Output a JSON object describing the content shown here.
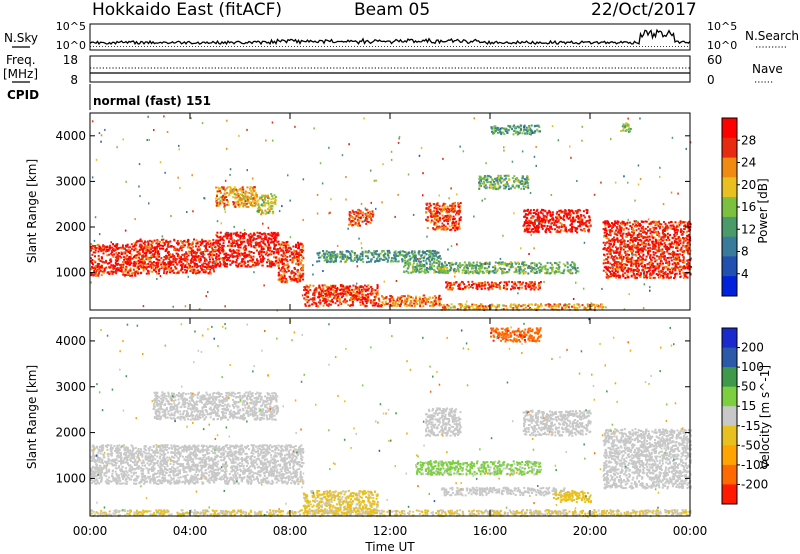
{
  "header": {
    "station": "Hokkaido East (fitACF)",
    "beam": "Beam 05",
    "date": "22/Oct/2017"
  },
  "status_panels": {
    "nsky_label": "N.Sky",
    "nsky_ticks": [
      "10^5",
      "10^0"
    ],
    "nsearch_label": "N.Search",
    "nsearch_ticks": [
      "10^5",
      "10^0"
    ],
    "freq_label": "Freq.",
    "freq_unit": "[MHz]",
    "freq_ticks": [
      "18",
      "8"
    ],
    "nave_label": "Nave",
    "nave_ticks": [
      "60",
      "0"
    ],
    "cpid_label": "CPID",
    "cpid_value": "normal (fast) 151"
  },
  "chart_data": [
    {
      "type": "heatmap",
      "panel": "power",
      "ylabel": "Slant Range [km]",
      "xlabel": "Time UT",
      "x_ticks": [
        "00:00",
        "04:00",
        "08:00",
        "12:00",
        "16:00",
        "20:00",
        "00:00"
      ],
      "x_range_hours": [
        0,
        24
      ],
      "y_ticks": [
        1000,
        2000,
        3000,
        4000
      ],
      "y_range_km": [
        180,
        4500
      ],
      "colorbar": {
        "label": "Power [dB]",
        "ticks": [
          4,
          8,
          12,
          16,
          20,
          24,
          28
        ],
        "range": [
          0,
          32
        ],
        "colors": [
          "#0022dd",
          "#2050b0",
          "#3a7a9a",
          "#4a9a6a",
          "#7cc040",
          "#e8c020",
          "#f08a10",
          "#e82a10",
          "#ff0000"
        ]
      },
      "regions": [
        {
          "t0": 0.0,
          "t1": 1.8,
          "r0": 950,
          "r1": 1650,
          "value": 28
        },
        {
          "t0": 1.8,
          "t1": 5.0,
          "r0": 1000,
          "r1": 1750,
          "value": 28
        },
        {
          "t0": 5.0,
          "t1": 7.5,
          "r0": 1150,
          "r1": 1900,
          "value": 29
        },
        {
          "t0": 7.5,
          "t1": 8.5,
          "r0": 800,
          "r1": 1700,
          "value": 27
        },
        {
          "t0": 8.5,
          "t1": 11.5,
          "r0": 280,
          "r1": 750,
          "value": 27
        },
        {
          "t0": 11.5,
          "t1": 14.0,
          "r0": 280,
          "r1": 520,
          "value": 24
        },
        {
          "t0": 14.0,
          "t1": 20.5,
          "r0": 200,
          "r1": 330,
          "value": 22
        },
        {
          "t0": 5.0,
          "t1": 6.6,
          "r0": 2450,
          "r1": 2900,
          "value": 22
        },
        {
          "t0": 6.6,
          "t1": 7.4,
          "r0": 2300,
          "r1": 2750,
          "value": 18
        },
        {
          "t0": 10.3,
          "t1": 11.3,
          "r0": 2050,
          "r1": 2400,
          "value": 26
        },
        {
          "t0": 13.4,
          "t1": 14.8,
          "r0": 1950,
          "r1": 2550,
          "value": 26
        },
        {
          "t0": 17.3,
          "t1": 20.0,
          "r0": 1900,
          "r1": 2400,
          "value": 29
        },
        {
          "t0": 20.5,
          "t1": 24.0,
          "r0": 900,
          "r1": 2150,
          "value": 28
        },
        {
          "t0": 9.0,
          "t1": 14.0,
          "r0": 1250,
          "r1": 1500,
          "value": 12
        },
        {
          "t0": 12.5,
          "t1": 19.5,
          "r0": 1000,
          "r1": 1250,
          "value": 14
        },
        {
          "t0": 14.2,
          "t1": 18.0,
          "r0": 650,
          "r1": 820,
          "value": 27
        },
        {
          "t0": 15.5,
          "t1": 17.5,
          "r0": 2850,
          "r1": 3150,
          "value": 14
        },
        {
          "t0": 16.0,
          "t1": 18.0,
          "r0": 4050,
          "r1": 4250,
          "value": 12
        },
        {
          "t0": 21.2,
          "t1": 21.6,
          "r0": 4100,
          "r1": 4300,
          "value": 14
        }
      ]
    },
    {
      "type": "heatmap",
      "panel": "velocity",
      "ylabel": "Slant Range [km]",
      "xlabel": "Time UT",
      "x_ticks": [
        "00:00",
        "04:00",
        "08:00",
        "12:00",
        "16:00",
        "20:00",
        "00:00"
      ],
      "x_range_hours": [
        0,
        24
      ],
      "y_ticks": [
        1000,
        2000,
        3000,
        4000
      ],
      "y_range_km": [
        180,
        4500
      ],
      "colorbar": {
        "label": "Velocity [m s^-1]",
        "ticks": [
          200,
          100,
          50,
          15,
          -15,
          -50,
          -100,
          -200
        ],
        "range": [
          -250,
          250
        ],
        "colors": [
          "#ff1a00",
          "#ff6a00",
          "#ffa400",
          "#e8c020",
          "#c8c8c8",
          "#7cd040",
          "#3e9a4a",
          "#2a5aa8",
          "#1a2acc"
        ]
      },
      "regions": [
        {
          "t0": 0.0,
          "t1": 8.5,
          "r0": 900,
          "r1": 1750,
          "value": 0
        },
        {
          "t0": 2.5,
          "t1": 7.5,
          "r0": 2300,
          "r1": 2900,
          "value": 0
        },
        {
          "t0": 8.5,
          "t1": 11.5,
          "r0": 250,
          "r1": 750,
          "value": -40
        },
        {
          "t0": 13.4,
          "t1": 14.8,
          "r0": 1950,
          "r1": 2550,
          "value": 0
        },
        {
          "t0": 17.3,
          "t1": 20.0,
          "r0": 1950,
          "r1": 2500,
          "value": 0
        },
        {
          "t0": 20.5,
          "t1": 24.0,
          "r0": 800,
          "r1": 2100,
          "value": 0
        },
        {
          "t0": 13.0,
          "t1": 18.0,
          "r0": 1100,
          "r1": 1400,
          "value": 40
        },
        {
          "t0": 14.0,
          "t1": 19.0,
          "r0": 650,
          "r1": 820,
          "value": 0
        },
        {
          "t0": 18.5,
          "t1": 20.0,
          "r0": 500,
          "r1": 750,
          "value": -60
        },
        {
          "t0": 0.0,
          "t1": 24.0,
          "r0": 200,
          "r1": 330,
          "value": -30
        },
        {
          "t0": 16.0,
          "t1": 18.0,
          "r0": 4000,
          "r1": 4300,
          "value": -180
        }
      ]
    }
  ]
}
